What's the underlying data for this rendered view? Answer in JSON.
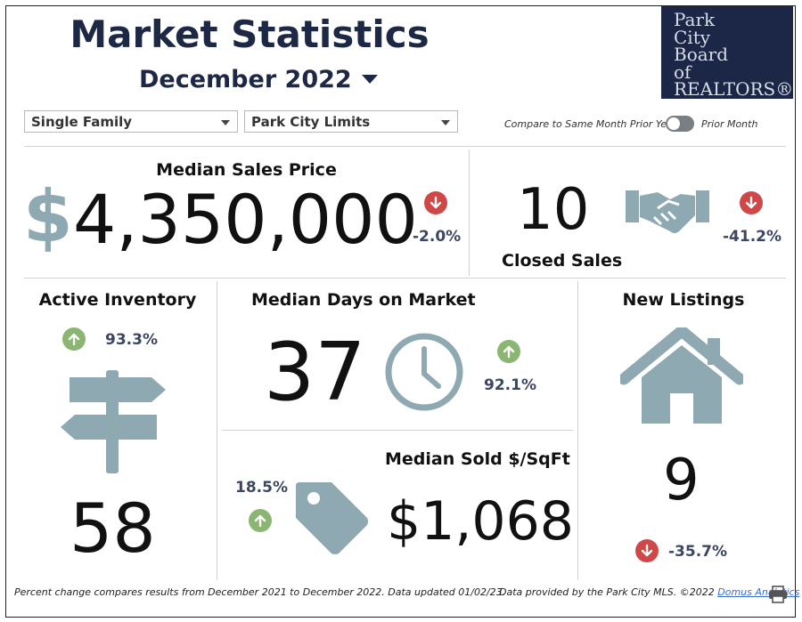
{
  "header": {
    "title": "Market Statistics",
    "period": "December 2022"
  },
  "logo": {
    "lines": [
      "Park",
      "City",
      "Board",
      "of",
      "REALTORS®"
    ]
  },
  "filters": {
    "property_type": "Single Family",
    "area": "Park City Limits"
  },
  "compare_toggle": {
    "left_label": "Compare to Same Month Prior Year",
    "right_label": "Prior Month"
  },
  "metrics": {
    "median_sales_price": {
      "label": "Median Sales Price",
      "currency": "$",
      "value": "4,350,000",
      "change": "-2.0%",
      "direction": "down"
    },
    "closed_sales": {
      "label": "Closed Sales",
      "value": "10",
      "change": "-41.2%",
      "direction": "down"
    },
    "active_inventory": {
      "label": "Active Inventory",
      "value": "58",
      "change": "93.3%",
      "direction": "up"
    },
    "median_days_on_market": {
      "label": "Median Days on Market",
      "value": "37",
      "change": "92.1%",
      "direction": "up"
    },
    "median_sold_per_sqft": {
      "label": "Median Sold $/SqFt",
      "value": "$1,068",
      "change": "18.5%",
      "direction": "up"
    },
    "new_listings": {
      "label": "New Listings",
      "value": "9",
      "change": "-35.7%",
      "direction": "down"
    }
  },
  "footer": {
    "note": "Percent change compares results from December 2021 to December 2022.  Data updated 01/02/23.",
    "credit": "Data provided by the Park City MLS. ©2022",
    "link": "Domus Analytics"
  },
  "colors": {
    "navy": "#1d2845",
    "icon": "#8ea9b1",
    "up": "#8ab572",
    "down": "#cf4848"
  }
}
